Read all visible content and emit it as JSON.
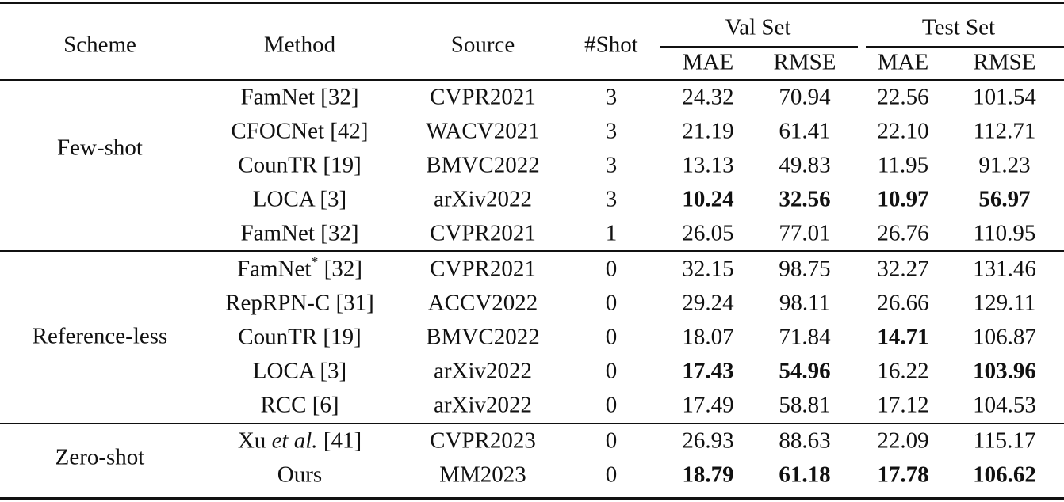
{
  "header": {
    "scheme": "Scheme",
    "method": "Method",
    "source": "Source",
    "shot": "#Shot",
    "val_set": "Val Set",
    "test_set": "Test Set",
    "mae": "MAE",
    "rmse": "RMSE"
  },
  "groups": [
    {
      "scheme": "Few-shot",
      "rows": [
        {
          "method": "FamNet [32]",
          "source": "CVPR2021",
          "shot": "3",
          "val_mae": "24.32",
          "val_rmse": "70.94",
          "test_mae": "22.56",
          "test_rmse": "101.54"
        },
        {
          "method": "CFOCNet [42]",
          "source": "WACV2021",
          "shot": "3",
          "val_mae": "21.19",
          "val_rmse": "61.41",
          "test_mae": "22.10",
          "test_rmse": "112.71"
        },
        {
          "method": "CounTR [19]",
          "source": "BMVC2022",
          "shot": "3",
          "val_mae": "13.13",
          "val_rmse": "49.83",
          "test_mae": "11.95",
          "test_rmse": "91.23"
        },
        {
          "method": "LOCA [3]",
          "source": "arXiv2022",
          "shot": "3",
          "val_mae": "10.24",
          "val_rmse": "32.56",
          "test_mae": "10.97",
          "test_rmse": "56.97",
          "bold": [
            "val_mae",
            "val_rmse",
            "test_mae",
            "test_rmse"
          ]
        },
        {
          "method": "FamNet [32]",
          "source": "CVPR2021",
          "shot": "1",
          "val_mae": "26.05",
          "val_rmse": "77.01",
          "test_mae": "26.76",
          "test_rmse": "110.95"
        }
      ]
    },
    {
      "scheme": "Reference-less",
      "rows": [
        {
          "method_parts": [
            "FamNet",
            "*",
            " [32]"
          ],
          "source": "CVPR2021",
          "shot": "0",
          "val_mae": "32.15",
          "val_rmse": "98.75",
          "test_mae": "32.27",
          "test_rmse": "131.46"
        },
        {
          "method": "RepRPN-C [31]",
          "source": "ACCV2022",
          "shot": "0",
          "val_mae": "29.24",
          "val_rmse": "98.11",
          "test_mae": "26.66",
          "test_rmse": "129.11"
        },
        {
          "method": "CounTR [19]",
          "source": "BMVC2022",
          "shot": "0",
          "val_mae": "18.07",
          "val_rmse": "71.84",
          "test_mae": "14.71",
          "test_rmse": "106.87",
          "bold": [
            "test_mae"
          ]
        },
        {
          "method": "LOCA [3]",
          "source": "arXiv2022",
          "shot": "0",
          "val_mae": "17.43",
          "val_rmse": "54.96",
          "test_mae": "16.22",
          "test_rmse": "103.96",
          "bold": [
            "val_mae",
            "val_rmse",
            "test_rmse"
          ]
        },
        {
          "method": "RCC [6]",
          "source": "arXiv2022",
          "shot": "0",
          "val_mae": "17.49",
          "val_rmse": "58.81",
          "test_mae": "17.12",
          "test_rmse": "104.53"
        }
      ]
    },
    {
      "scheme": "Zero-shot",
      "rows": [
        {
          "method_parts": [
            "Xu ",
            "et al.",
            " [41]"
          ],
          "source": "CVPR2023",
          "shot": "0",
          "val_mae": "26.93",
          "val_rmse": "88.63",
          "test_mae": "22.09",
          "test_rmse": "115.17"
        },
        {
          "method": "Ours",
          "source": "MM2023",
          "shot": "0",
          "val_mae": "18.79",
          "val_rmse": "61.18",
          "test_mae": "17.78",
          "test_rmse": "106.62",
          "bold": [
            "val_mae",
            "val_rmse",
            "test_mae",
            "test_rmse"
          ]
        }
      ]
    }
  ]
}
